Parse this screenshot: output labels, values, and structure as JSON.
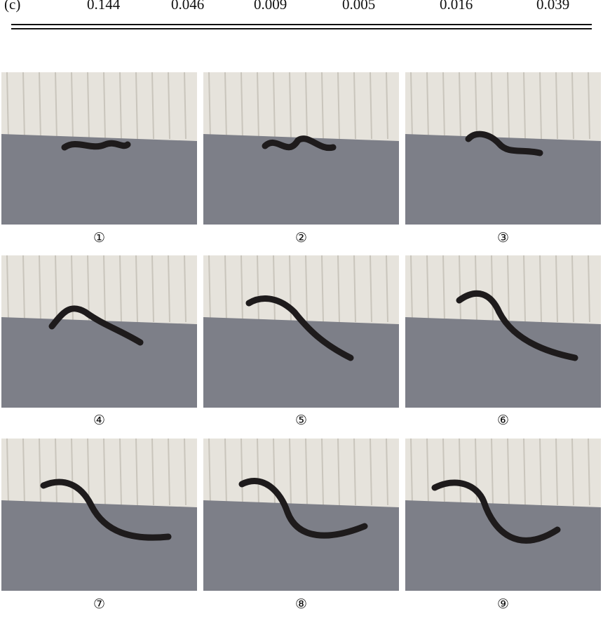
{
  "table": {
    "row": [
      "(c)",
      "0.144",
      "0.046",
      "0.009",
      "0.005",
      "0.016",
      "0.039"
    ]
  },
  "figure": {
    "frames": [
      {
        "label": "①",
        "shape": "compact"
      },
      {
        "label": "②",
        "shape": "wave-low"
      },
      {
        "label": "③",
        "shape": "s-small"
      },
      {
        "label": "④",
        "shape": "s-medium"
      },
      {
        "label": "⑤",
        "shape": "s-long"
      },
      {
        "label": "⑥",
        "shape": "s-longer"
      },
      {
        "label": "⑦",
        "shape": "s-full"
      },
      {
        "label": "⑧",
        "shape": "s-full-b"
      },
      {
        "label": "⑨",
        "shape": "s-full-c"
      }
    ],
    "colors": {
      "curtain": "#e6e3dc",
      "floor": "#7d7f88",
      "robot": "#1e1b1c"
    }
  }
}
